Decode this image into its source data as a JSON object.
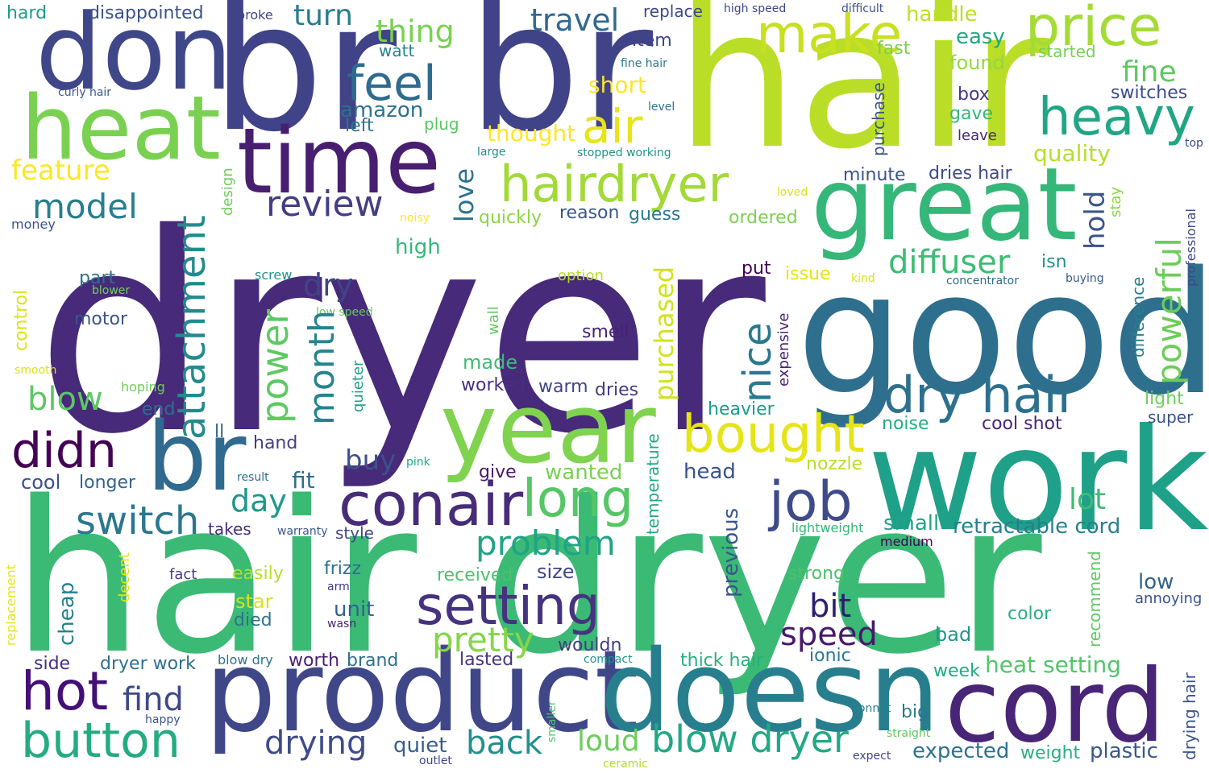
{
  "words": [
    {
      "text": "dryer",
      "color": "#472a7a"
    },
    {
      "text": "hair dryer",
      "color": "#3bba75"
    },
    {
      "text": "hair",
      "color": "#bade28"
    },
    {
      "text": "br",
      "color": "#404387"
    },
    {
      "text": "br",
      "color": "#404387"
    },
    {
      "text": "good",
      "color": "#2e6f8e"
    },
    {
      "text": "work",
      "color": "#1fa088"
    },
    {
      "text": "product",
      "color": "#3f4788"
    },
    {
      "text": "doesn",
      "color": "#277f8e"
    },
    {
      "text": "don",
      "color": "#3f4788"
    },
    {
      "text": "heat",
      "color": "#7ad151"
    },
    {
      "text": "time",
      "color": "#481f70"
    },
    {
      "text": "great",
      "color": "#35b779"
    },
    {
      "text": "year",
      "color": "#7fd34e"
    },
    {
      "text": "cord",
      "color": "#482576"
    },
    {
      "text": "br",
      "color": "#306a8e"
    },
    {
      "text": "conair",
      "color": "#472c7a"
    },
    {
      "text": "price",
      "color": "#a5db36"
    },
    {
      "text": "make",
      "color": "#c8e020"
    },
    {
      "text": "hairdryer",
      "color": "#a2da37"
    },
    {
      "text": "heavy",
      "color": "#21a685"
    },
    {
      "text": "dry hair",
      "color": "#2d708e"
    },
    {
      "text": "feel",
      "color": "#2f6b8e"
    },
    {
      "text": "air",
      "color": "#e7e419"
    },
    {
      "text": "bought",
      "color": "#e5e419"
    },
    {
      "text": "job",
      "color": "#3e4a89"
    },
    {
      "text": "setting",
      "color": "#46337f"
    },
    {
      "text": "long",
      "color": "#56c667"
    },
    {
      "text": "hot",
      "color": "#440f76"
    },
    {
      "text": "button",
      "color": "#25ab82"
    },
    {
      "text": "blow dryer",
      "color": "#22a884"
    },
    {
      "text": "didn",
      "color": "#440154"
    },
    {
      "text": "switch",
      "color": "#2a778e"
    },
    {
      "text": "review",
      "color": "#433e85"
    },
    {
      "text": "model",
      "color": "#277f8e"
    },
    {
      "text": "diffuser",
      "color": "#3dbc74"
    },
    {
      "text": "problem",
      "color": "#20a386"
    },
    {
      "text": "pretty",
      "color": "#86d549"
    },
    {
      "text": "speed",
      "color": "#48196b"
    },
    {
      "text": "feature",
      "color": "#fde725"
    },
    {
      "text": "thing",
      "color": "#7ad151"
    },
    {
      "text": "travel",
      "color": "#31688e"
    },
    {
      "text": "turn",
      "color": "#287c8e"
    },
    {
      "text": "blow",
      "color": "#5cc863"
    },
    {
      "text": "find",
      "color": "#3e4989"
    },
    {
      "text": "drying",
      "color": "#3e4c8a"
    },
    {
      "text": "back",
      "color": "#21908d"
    },
    {
      "text": "loud",
      "color": "#6ccd5a"
    },
    {
      "text": "bit",
      "color": "#2d1e72"
    },
    {
      "text": "day",
      "color": "#1f988b"
    },
    {
      "text": "buy",
      "color": "#3b528b"
    },
    {
      "text": "lot",
      "color": "#3dbc74"
    },
    {
      "text": "small",
      "color": "#20a386"
    },
    {
      "text": "retractable cord",
      "color": "#277f8e"
    },
    {
      "text": "dry",
      "color": "#404588"
    },
    {
      "text": "expected",
      "color": "#2c728e"
    },
    {
      "text": "plastic",
      "color": "#38588c"
    },
    {
      "text": "weight",
      "color": "#29af7f"
    },
    {
      "text": "heat setting",
      "color": "#52c569"
    },
    {
      "text": "short",
      "color": "#fde725"
    },
    {
      "text": "thought",
      "color": "#fde725"
    },
    {
      "text": "amazon",
      "color": "#2c728e"
    },
    {
      "text": "fine",
      "color": "#5ec962"
    },
    {
      "text": "quality",
      "color": "#b5de2b"
    },
    {
      "text": "easy",
      "color": "#22a884"
    },
    {
      "text": "handle",
      "color": "#bddf26"
    },
    {
      "text": "found",
      "color": "#95d840"
    },
    {
      "text": "box",
      "color": "#453882"
    },
    {
      "text": "gave",
      "color": "#35b779"
    },
    {
      "text": "switches",
      "color": "#3e4a89"
    },
    {
      "text": "minute",
      "color": "#3b528b"
    },
    {
      "text": "dries hair",
      "color": "#3e4a89"
    },
    {
      "text": "ordered",
      "color": "#7ad151"
    },
    {
      "text": "reason",
      "color": "#39568c"
    },
    {
      "text": "guess",
      "color": "#287c8e"
    },
    {
      "text": "quickly",
      "color": "#8bd646"
    },
    {
      "text": "high",
      "color": "#35b779"
    },
    {
      "text": "part",
      "color": "#2e6f8e"
    },
    {
      "text": "motor",
      "color": "#3b528b"
    },
    {
      "text": "smell",
      "color": "#482173"
    },
    {
      "text": "made",
      "color": "#3dbc74"
    },
    {
      "text": "worked",
      "color": "#46317e"
    },
    {
      "text": "warm",
      "color": "#404588"
    },
    {
      "text": "dries",
      "color": "#433d84"
    },
    {
      "text": "heavier",
      "color": "#1e9c89"
    },
    {
      "text": "noise",
      "color": "#26ad81"
    },
    {
      "text": "cool shot",
      "color": "#482576"
    },
    {
      "text": "head",
      "color": "#3b528b"
    },
    {
      "text": "nozzle",
      "color": "#b8de29"
    },
    {
      "text": "end",
      "color": "#2e6d8e"
    },
    {
      "text": "hand",
      "color": "#433e85"
    },
    {
      "text": "cool",
      "color": "#3b518b"
    },
    {
      "text": "longer",
      "color": "#33638d"
    },
    {
      "text": "fit",
      "color": "#2e6f8e"
    },
    {
      "text": "give",
      "color": "#48186a"
    },
    {
      "text": "wanted",
      "color": "#7ad151"
    },
    {
      "text": "takes",
      "color": "#472c7a"
    },
    {
      "text": "style",
      "color": "#3f4788"
    },
    {
      "text": "size",
      "color": "#404588"
    },
    {
      "text": "received",
      "color": "#4ac16d"
    },
    {
      "text": "easily",
      "color": "#b5de2b"
    },
    {
      "text": "frizz",
      "color": "#2e6f8e"
    },
    {
      "text": "unit",
      "color": "#33638d"
    },
    {
      "text": "star",
      "color": "#d8e219"
    },
    {
      "text": "died",
      "color": "#2c728e"
    },
    {
      "text": "low",
      "color": "#33638d"
    },
    {
      "text": "annoying",
      "color": "#3b528b"
    },
    {
      "text": "color",
      "color": "#29af7f"
    },
    {
      "text": "bad",
      "color": "#1f968b"
    },
    {
      "text": "wouldn",
      "color": "#433e85"
    },
    {
      "text": "lasted",
      "color": "#46337f"
    },
    {
      "text": "worth",
      "color": "#481f70"
    },
    {
      "text": "brand",
      "color": "#2d708e"
    },
    {
      "text": "side",
      "color": "#472f7d"
    },
    {
      "text": "dryer work",
      "color": "#2e6f8e"
    },
    {
      "text": "quiet",
      "color": "#365d8d"
    },
    {
      "text": "thick hair",
      "color": "#29af7f"
    },
    {
      "text": "ionic",
      "color": "#2a788e"
    },
    {
      "text": "week",
      "color": "#22a884"
    },
    {
      "text": "big",
      "color": "#2a788e"
    },
    {
      "text": "strong",
      "color": "#4ac16d"
    },
    {
      "text": "light",
      "color": "#6ece58"
    },
    {
      "text": "super",
      "color": "#3b528b"
    },
    {
      "text": "hard",
      "color": "#1e9b8a"
    },
    {
      "text": "disappointed",
      "color": "#3b528b"
    },
    {
      "text": "broke",
      "color": "#404588"
    },
    {
      "text": "replace",
      "color": "#3e4989"
    },
    {
      "text": "item",
      "color": "#404588"
    },
    {
      "text": "watt",
      "color": "#26818e"
    },
    {
      "text": "fast",
      "color": "#7ad151"
    },
    {
      "text": "started",
      "color": "#73d056"
    },
    {
      "text": "plug",
      "color": "#5cc863"
    },
    {
      "text": "left",
      "color": "#2a788e"
    },
    {
      "text": "leave",
      "color": "#482878"
    },
    {
      "text": "isn",
      "color": "#21918c"
    },
    {
      "text": "put",
      "color": "#440154"
    },
    {
      "text": "issue",
      "color": "#e5e419"
    },
    {
      "text": "option",
      "color": "#b5de2b"
    },
    {
      "text": "screw",
      "color": "#21918c"
    },
    {
      "text": "buying",
      "color": "#375a8c"
    },
    {
      "text": "concentrator",
      "color": "#2f6b8e"
    },
    {
      "text": "kind",
      "color": "#d8e219"
    },
    {
      "text": "medium",
      "color": "#440154"
    },
    {
      "text": "lightweight",
      "color": "#35b779"
    },
    {
      "text": "warranty",
      "color": "#39568c"
    },
    {
      "text": "pink",
      "color": "#23a983"
    },
    {
      "text": "result",
      "color": "#2e6f8e"
    },
    {
      "text": "fact",
      "color": "#433e85"
    },
    {
      "text": "arm",
      "color": "#453882"
    },
    {
      "text": "wasn",
      "color": "#482878"
    },
    {
      "text": "blow dry",
      "color": "#2c728e"
    },
    {
      "text": "compact",
      "color": "#1f988b"
    },
    {
      "text": "happy",
      "color": "#3b528b"
    },
    {
      "text": "bonnet",
      "color": "#277f8e"
    },
    {
      "text": "straight",
      "color": "#5ec962"
    },
    {
      "text": "outlet",
      "color": "#404588"
    },
    {
      "text": "ceramic",
      "color": "#b5de2b"
    },
    {
      "text": "expect",
      "color": "#414487"
    },
    {
      "text": "high speed",
      "color": "#404588"
    },
    {
      "text": "difficult",
      "color": "#3b528b"
    },
    {
      "text": "fine hair",
      "color": "#2a788e"
    },
    {
      "text": "curly hair",
      "color": "#39568c"
    },
    {
      "text": "level",
      "color": "#2c728e"
    },
    {
      "text": "large",
      "color": "#21918c"
    },
    {
      "text": "stopped working",
      "color": "#21918c"
    },
    {
      "text": "top",
      "color": "#3e4989"
    },
    {
      "text": "loved",
      "color": "#dde318"
    },
    {
      "text": "noisy",
      "color": "#fde725"
    },
    {
      "text": "money",
      "color": "#3b528b"
    },
    {
      "text": "blower",
      "color": "#73d056"
    },
    {
      "text": "smooth",
      "color": "#dde318"
    },
    {
      "text": "hoping",
      "color": "#6ece58"
    },
    {
      "text": "low speed",
      "color": "#63cb5f"
    },
    {
      "text": "ll",
      "color": "#31688e"
    },
    {
      "text": "attachment",
      "color": "#238a8d"
    },
    {
      "text": "power",
      "color": "#5ec962"
    },
    {
      "text": "month",
      "color": "#25848e"
    },
    {
      "text": "purchased",
      "color": "#d2e21b"
    },
    {
      "text": "nice",
      "color": "#2a788e"
    },
    {
      "text": "love",
      "color": "#2d718e"
    },
    {
      "text": "powerful",
      "color": "#6ccd5a"
    },
    {
      "text": "hold",
      "color": "#3b528b"
    },
    {
      "text": "purchase",
      "color": "#3b528b"
    },
    {
      "text": "design",
      "color": "#6ece58"
    },
    {
      "text": "control",
      "color": "#dde318"
    },
    {
      "text": "wall",
      "color": "#5ec962"
    },
    {
      "text": "quieter",
      "color": "#1f9e89"
    },
    {
      "text": "expensive",
      "color": "#482475"
    },
    {
      "text": "temperature",
      "color": "#22a884"
    },
    {
      "text": "previous",
      "color": "#39568c"
    },
    {
      "text": "stay",
      "color": "#8bd646"
    },
    {
      "text": "professional",
      "color": "#3e4989"
    },
    {
      "text": "difference",
      "color": "#277f8e"
    },
    {
      "text": "recommend",
      "color": "#5ec962"
    },
    {
      "text": "drying hair",
      "color": "#3b528b"
    },
    {
      "text": "cheap",
      "color": "#26828e"
    },
    {
      "text": "decent",
      "color": "#e5e419"
    },
    {
      "text": "replacement",
      "color": "#e5e419"
    },
    {
      "text": "smaller",
      "color": "#52c569"
    }
  ]
}
